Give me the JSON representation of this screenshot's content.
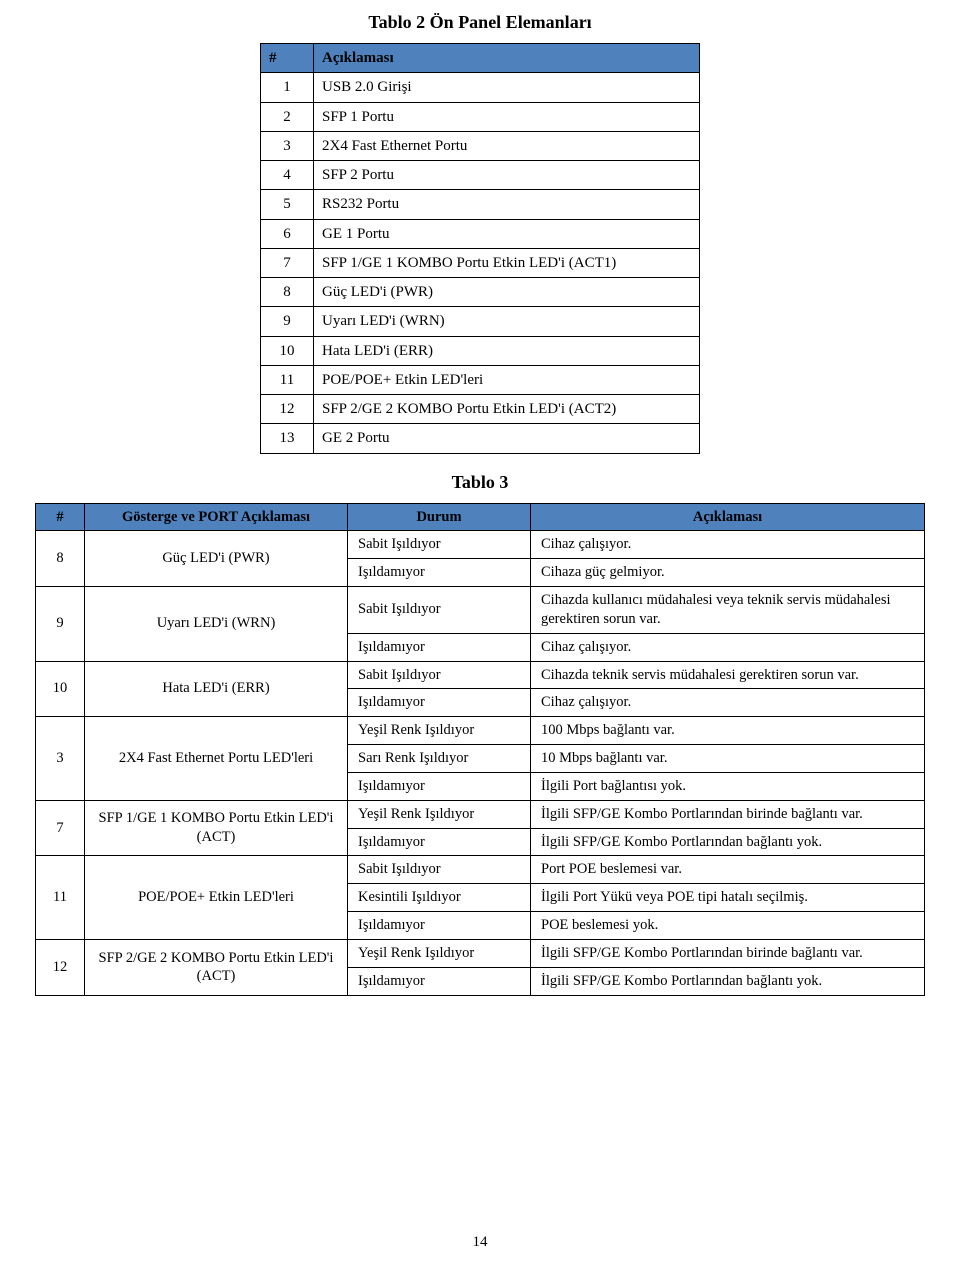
{
  "page_number": "14",
  "colors": {
    "header_bg": "#4f81bd",
    "border": "#000000",
    "text": "#000000",
    "page_bg": "#ffffff"
  },
  "table2": {
    "title": "Tablo 2 Ön Panel Elemanları",
    "headers": {
      "num": "#",
      "desc": "Açıklaması"
    },
    "rows": [
      {
        "n": "1",
        "d": "USB 2.0 Girişi"
      },
      {
        "n": "2",
        "d": "SFP 1 Portu"
      },
      {
        "n": "3",
        "d": "2X4 Fast Ethernet Portu"
      },
      {
        "n": "4",
        "d": "SFP 2 Portu"
      },
      {
        "n": "5",
        "d": "RS232 Portu"
      },
      {
        "n": "6",
        "d": "GE 1 Portu"
      },
      {
        "n": "7",
        "d": "SFP 1/GE 1 KOMBO Portu Etkin LED'i (ACT1)"
      },
      {
        "n": "8",
        "d": "Güç LED'i (PWR)"
      },
      {
        "n": "9",
        "d": "Uyarı LED'i (WRN)"
      },
      {
        "n": "10",
        "d": "Hata LED'i (ERR)"
      },
      {
        "n": "11",
        "d": "POE/POE+ Etkin LED'leri"
      },
      {
        "n": "12",
        "d": "SFP 2/GE 2 KOMBO Portu Etkin LED'i (ACT2)"
      },
      {
        "n": "13",
        "d": "GE 2 Portu"
      }
    ]
  },
  "table3": {
    "title": "Tablo 3",
    "headers": {
      "num": "#",
      "indicator": "Gösterge ve PORT Açıklaması",
      "state": "Durum",
      "desc": "Açıklaması"
    },
    "groups": [
      {
        "n": "8",
        "indicator": "Güç LED'i (PWR)",
        "rows": [
          {
            "state": "Sabit Işıldıyor",
            "desc": "Cihaz çalışıyor."
          },
          {
            "state": "Işıldamıyor",
            "desc": "Cihaza güç gelmiyor."
          }
        ]
      },
      {
        "n": "9",
        "indicator": "Uyarı LED'i (WRN)",
        "rows": [
          {
            "state": "Sabit Işıldıyor",
            "desc": "Cihazda kullanıcı müdahalesi veya teknik servis müdahalesi gerektiren sorun var."
          },
          {
            "state": "Işıldamıyor",
            "desc": "Cihaz çalışıyor."
          }
        ]
      },
      {
        "n": "10",
        "indicator": "Hata LED'i (ERR)",
        "rows": [
          {
            "state": "Sabit Işıldıyor",
            "desc": "Cihazda teknik servis müdahalesi gerektiren sorun var."
          },
          {
            "state": "Işıldamıyor",
            "desc": "Cihaz çalışıyor."
          }
        ]
      },
      {
        "n": "3",
        "indicator": "2X4 Fast Ethernet Portu LED'leri",
        "rows": [
          {
            "state": "Yeşil Renk Işıldıyor",
            "desc": "100 Mbps bağlantı var."
          },
          {
            "state": "Sarı Renk Işıldıyor",
            "desc": "10 Mbps bağlantı var."
          },
          {
            "state": "Işıldamıyor",
            "desc": "İlgili Port bağlantısı yok."
          }
        ]
      },
      {
        "n": "7",
        "indicator": "SFP 1/GE 1 KOMBO Portu Etkin LED'i (ACT)",
        "rows": [
          {
            "state": "Yeşil Renk Işıldıyor",
            "desc": "İlgili SFP/GE Kombo Portlarından birinde bağlantı var."
          },
          {
            "state": "Işıldamıyor",
            "desc": "İlgili SFP/GE Kombo Portlarından bağlantı yok."
          }
        ]
      },
      {
        "n": "11",
        "indicator": "POE/POE+ Etkin LED'leri",
        "rows": [
          {
            "state": "Sabit Işıldıyor",
            "desc": "Port POE beslemesi var."
          },
          {
            "state": "Kesintili Işıldıyor",
            "desc": "İlgili Port Yükü veya POE tipi hatalı seçilmiş."
          },
          {
            "state": "Işıldamıyor",
            "desc": "POE beslemesi yok."
          }
        ]
      },
      {
        "n": "12",
        "indicator": "SFP 2/GE 2 KOMBO Portu Etkin LED'i (ACT)",
        "rows": [
          {
            "state": "Yeşil Renk Işıldıyor",
            "desc": "İlgili SFP/GE Kombo Portlarından birinde bağlantı var."
          },
          {
            "state": "Işıldamıyor",
            "desc": "İlgili SFP/GE Kombo Portlarından bağlantı yok."
          }
        ]
      }
    ]
  }
}
